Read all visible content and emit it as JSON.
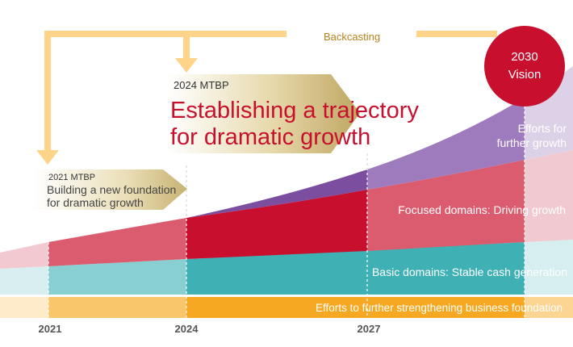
{
  "backcasting_label": "Backcasting",
  "vision": {
    "line1": "2030",
    "line2": "Vision"
  },
  "mtbp2024": {
    "tag": "2024 MTBP",
    "line1": "Establishing a trajectory",
    "line2": "for dramatic growth"
  },
  "mtbp2021": {
    "tag": "2021 MTBP",
    "line1": "Building a new foundation",
    "line2": "for dramatic growth"
  },
  "bands": {
    "efforts_further_growth": {
      "line1": "Efforts for",
      "line2": "further growth"
    },
    "focused": "Focused domains:  Driving growth",
    "basic": "Basic domains: Stable cash generation",
    "foundation": "Efforts to further strengthening business foundation"
  },
  "years": [
    "2021",
    "2024",
    "2027"
  ],
  "colors": {
    "arrow": "#fdd48a",
    "vision": "#c8102e",
    "focused": "#c8102e",
    "purple": "#7b4ea0",
    "basic": "#3fb1b5",
    "foundation": "#f7a823",
    "gold": "#c9b073"
  }
}
